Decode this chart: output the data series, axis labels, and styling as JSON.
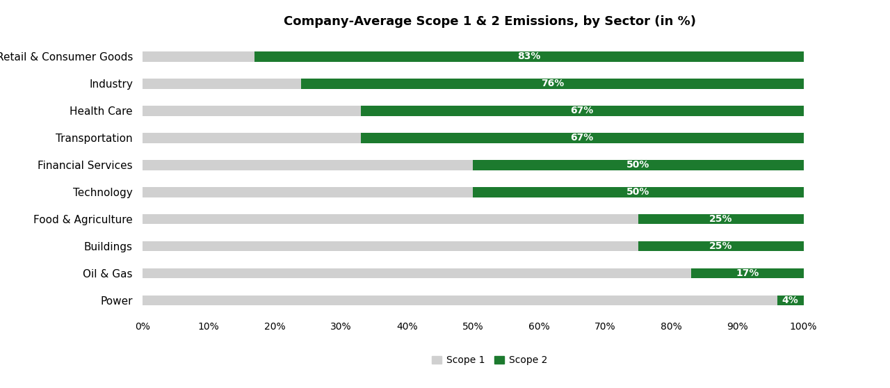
{
  "title": "Company-Average Scope 1 & 2 Emissions, by Sector (in %)",
  "categories": [
    "Retail & Consumer Goods",
    "Industry",
    "Health Care",
    "Transportation",
    "Financial Services",
    "Technology",
    "Food & Agriculture",
    "Buildings",
    "Oil & Gas",
    "Power"
  ],
  "scope2_pct": [
    83,
    76,
    67,
    67,
    50,
    50,
    25,
    25,
    17,
    4
  ],
  "scope1_pct": [
    17,
    24,
    33,
    33,
    50,
    50,
    75,
    75,
    83,
    96
  ],
  "scope1_color": "#d0d0d0",
  "scope2_color": "#1c7a2e",
  "background_color": "#ffffff",
  "bar_height": 0.38,
  "xlim": [
    0,
    105
  ],
  "xticks": [
    0,
    10,
    20,
    30,
    40,
    50,
    60,
    70,
    80,
    90,
    100
  ],
  "xtick_labels": [
    "0%",
    "10%",
    "20%",
    "30%",
    "40%",
    "50%",
    "60%",
    "70%",
    "80%",
    "90%",
    "100%"
  ],
  "label_fontsize": 10,
  "title_fontsize": 13,
  "tick_fontsize": 10,
  "ytick_fontsize": 11,
  "legend_labels": [
    "Scope 1",
    "Scope 2"
  ]
}
